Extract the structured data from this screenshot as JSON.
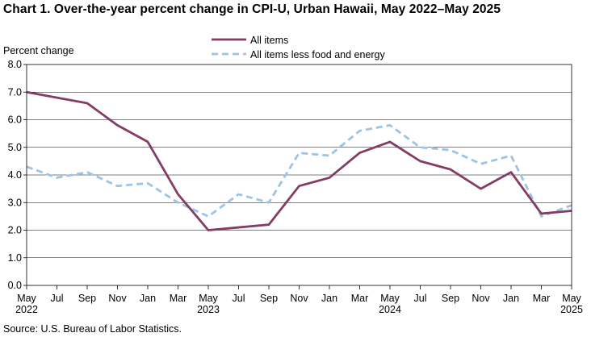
{
  "title": "Chart 1. Over-the-year percent change in CPI-U, Urban Hawaii, May 2022–May  2025",
  "source": "Source: U.S. Bureau  of Labor Statistics.",
  "colors": {
    "all_items": "#843C64",
    "core": "#9DC3E6",
    "axis": "#000000"
  },
  "chart_data": {
    "type": "line",
    "ylabel": "Percent change",
    "ylim": [
      0,
      8
    ],
    "yticks": [
      "0.0",
      "1.0",
      "2.0",
      "3.0",
      "4.0",
      "5.0",
      "6.0",
      "7.0",
      "8.0"
    ],
    "x_months": [
      "May",
      "Jul",
      "Sep",
      "Nov",
      "Jan",
      "Mar",
      "May",
      "Jul",
      "Sep",
      "Nov",
      "Jan",
      "Mar",
      "May",
      "Jul",
      "Sep",
      "Nov",
      "Jan",
      "Mar",
      "May"
    ],
    "x_years": [
      {
        "index": 0,
        "label": "2022"
      },
      {
        "index": 6,
        "label": "2023"
      },
      {
        "index": 12,
        "label": "2024"
      },
      {
        "index": 18,
        "label": "2025"
      }
    ],
    "legend": [
      "All items",
      "All items less food and energy"
    ],
    "series": [
      {
        "name": "All items",
        "style": "solid",
        "values": [
          7.0,
          6.8,
          6.6,
          5.8,
          5.2,
          3.3,
          2.0,
          2.1,
          2.2,
          3.6,
          3.9,
          4.8,
          5.2,
          4.5,
          4.2,
          3.5,
          4.1,
          2.6,
          2.7
        ]
      },
      {
        "name": "All items less food and energy",
        "style": "dashed",
        "values": [
          4.3,
          3.9,
          4.1,
          3.6,
          3.7,
          3.0,
          2.5,
          3.3,
          3.0,
          4.8,
          4.7,
          5.6,
          5.8,
          5.0,
          4.9,
          4.4,
          4.7,
          2.5,
          2.9
        ]
      }
    ]
  }
}
